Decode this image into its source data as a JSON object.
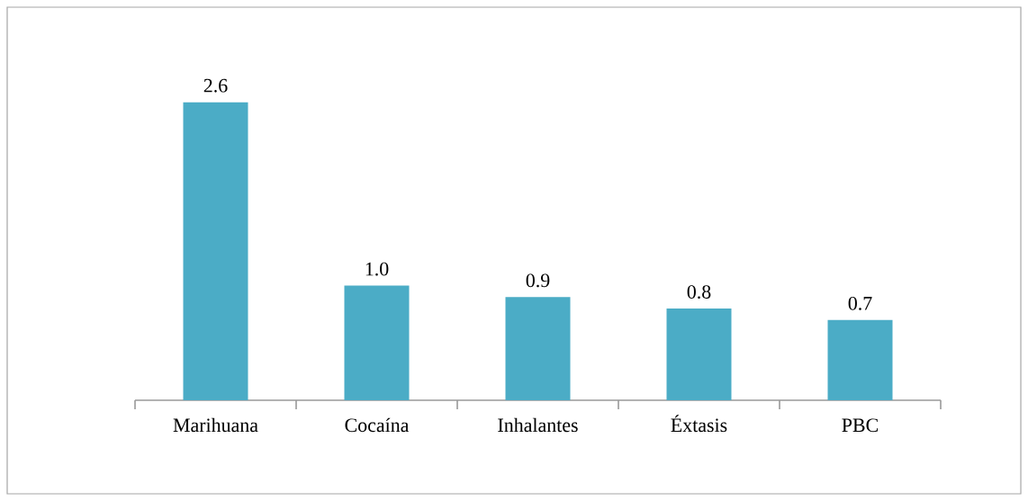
{
  "chart_data": {
    "type": "bar",
    "categories": [
      "Marihuana",
      "Cocaína",
      "Inhalantes",
      "Éxtasis",
      "PBC"
    ],
    "values": [
      2.6,
      1.0,
      0.9,
      0.8,
      0.7
    ],
    "color": "#4bacc6",
    "value_labels": [
      "2.6",
      "1.0",
      "0.9",
      "0.8",
      "0.7"
    ],
    "tick_labels": "x"
  }
}
